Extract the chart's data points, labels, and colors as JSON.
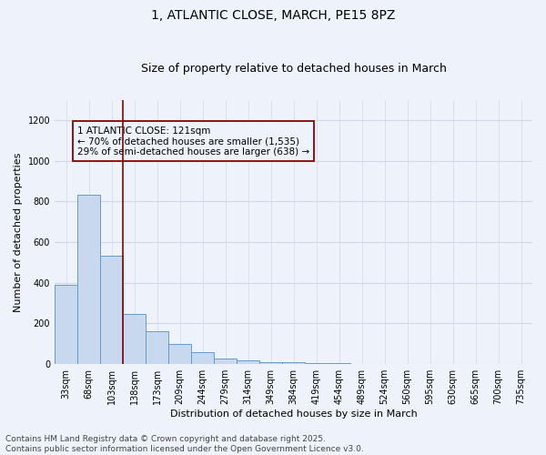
{
  "title": "1, ATLANTIC CLOSE, MARCH, PE15 8PZ",
  "subtitle": "Size of property relative to detached houses in March",
  "xlabel": "Distribution of detached houses by size in March",
  "ylabel": "Number of detached properties",
  "categories": [
    "33sqm",
    "68sqm",
    "103sqm",
    "138sqm",
    "173sqm",
    "209sqm",
    "244sqm",
    "279sqm",
    "314sqm",
    "349sqm",
    "384sqm",
    "419sqm",
    "454sqm",
    "489sqm",
    "524sqm",
    "560sqm",
    "595sqm",
    "630sqm",
    "665sqm",
    "700sqm",
    "735sqm"
  ],
  "values": [
    390,
    835,
    535,
    248,
    160,
    100,
    58,
    30,
    20,
    12,
    8,
    5,
    4,
    3,
    3,
    2,
    2,
    2,
    2,
    2,
    2
  ],
  "bar_color": "#c8d8ee",
  "bar_edge_color": "#6699cc",
  "bg_color": "#edf2fb",
  "grid_color": "#d0d8e8",
  "vline_color": "#8b0000",
  "vline_x_index": 2.5,
  "annotation_text": "1 ATLANTIC CLOSE: 121sqm\n← 70% of detached houses are smaller (1,535)\n29% of semi-detached houses are larger (638) →",
  "annotation_box_color": "#8b0000",
  "footer": "Contains HM Land Registry data © Crown copyright and database right 2025.\nContains public sector information licensed under the Open Government Licence v3.0.",
  "ylim": [
    0,
    1300
  ],
  "title_fontsize": 10,
  "subtitle_fontsize": 9,
  "axis_label_fontsize": 8,
  "tick_fontsize": 7,
  "annot_fontsize": 7.5,
  "footer_fontsize": 6.5,
  "yticks": [
    0,
    200,
    400,
    600,
    800,
    1000,
    1200
  ]
}
